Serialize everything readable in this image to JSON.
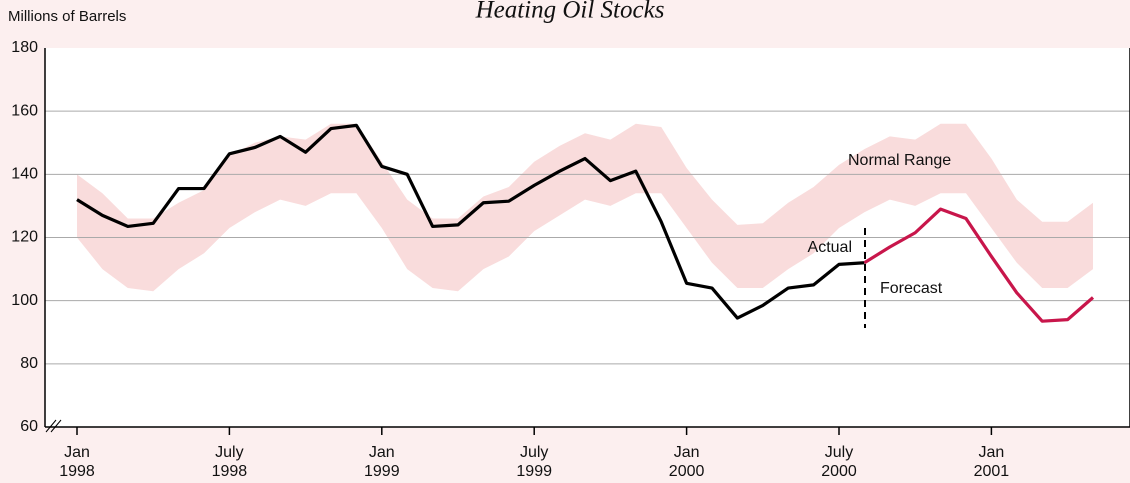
{
  "chart_data": {
    "type": "line",
    "title": "Heating Oil Stocks",
    "y_label": "Millions of Barrels",
    "x": [
      "1998-01",
      "1998-02",
      "1998-03",
      "1998-04",
      "1998-05",
      "1998-06",
      "1998-07",
      "1998-08",
      "1998-09",
      "1998-10",
      "1998-11",
      "1998-12",
      "1999-01",
      "1999-02",
      "1999-03",
      "1999-04",
      "1999-05",
      "1999-06",
      "1999-07",
      "1999-08",
      "1999-09",
      "1999-10",
      "1999-11",
      "1999-12",
      "2000-01",
      "2000-02",
      "2000-03",
      "2000-04",
      "2000-05",
      "2000-06",
      "2000-07",
      "2000-08",
      "2000-09",
      "2000-10",
      "2000-11",
      "2000-12",
      "2001-01",
      "2001-02",
      "2001-03",
      "2001-04",
      "2001-05"
    ],
    "xticks": [
      {
        "value": "1998-01",
        "label": "Jan 1998"
      },
      {
        "value": "1998-07",
        "label": "July 1998"
      },
      {
        "value": "1999-01",
        "label": "Jan 1999"
      },
      {
        "value": "1999-07",
        "label": "July 1999"
      },
      {
        "value": "2000-01",
        "label": "Jan 2000"
      },
      {
        "value": "2000-07",
        "label": "July 2000"
      },
      {
        "value": "2001-01",
        "label": "Jan 2001"
      }
    ],
    "ylim": [
      60,
      180
    ],
    "yticks": [
      60,
      80,
      100,
      120,
      140,
      160,
      180
    ],
    "grid": true,
    "range": {
      "name": "Normal Range",
      "color": "#f9dcdc",
      "upper": [
        140,
        134,
        126,
        126,
        131,
        135,
        146,
        150,
        152,
        151,
        156,
        156,
        144,
        132,
        126,
        126,
        133,
        136,
        144,
        149,
        153,
        151,
        156,
        155,
        142,
        132,
        124,
        124.5,
        131,
        136,
        143,
        148,
        152,
        151,
        156,
        156,
        145,
        132,
        125,
        125,
        131
      ],
      "lower": [
        120,
        110,
        104,
        103,
        110,
        115,
        123,
        128,
        132,
        130,
        134,
        134,
        123,
        110,
        104,
        103,
        110,
        114,
        122,
        127,
        132,
        130,
        134,
        134,
        123,
        112,
        104,
        104,
        110,
        115,
        123,
        128,
        132,
        130,
        134,
        134,
        123,
        112,
        104,
        104,
        110
      ]
    },
    "series": [
      {
        "name": "Actual",
        "color": "#000000",
        "values": [
          132,
          127,
          123.5,
          124.5,
          135.5,
          135.5,
          146.5,
          148.5,
          152,
          147,
          154.5,
          155.5,
          142.5,
          140,
          123.5,
          124,
          131,
          131.5,
          136.5,
          141,
          145,
          138,
          141,
          125,
          105.5,
          104,
          94.5,
          98.5,
          104,
          105,
          111.5,
          112,
          null,
          null,
          null,
          null,
          null,
          null,
          null,
          null,
          null
        ]
      },
      {
        "name": "Forecast",
        "color": "#c8164b",
        "values": [
          null,
          null,
          null,
          null,
          null,
          null,
          null,
          null,
          null,
          null,
          null,
          null,
          null,
          null,
          null,
          null,
          null,
          null,
          null,
          null,
          null,
          null,
          null,
          null,
          null,
          null,
          null,
          null,
          null,
          null,
          null,
          112,
          117,
          121.5,
          129,
          126,
          114,
          102.5,
          93.5,
          94,
          101
        ]
      }
    ]
  }
}
